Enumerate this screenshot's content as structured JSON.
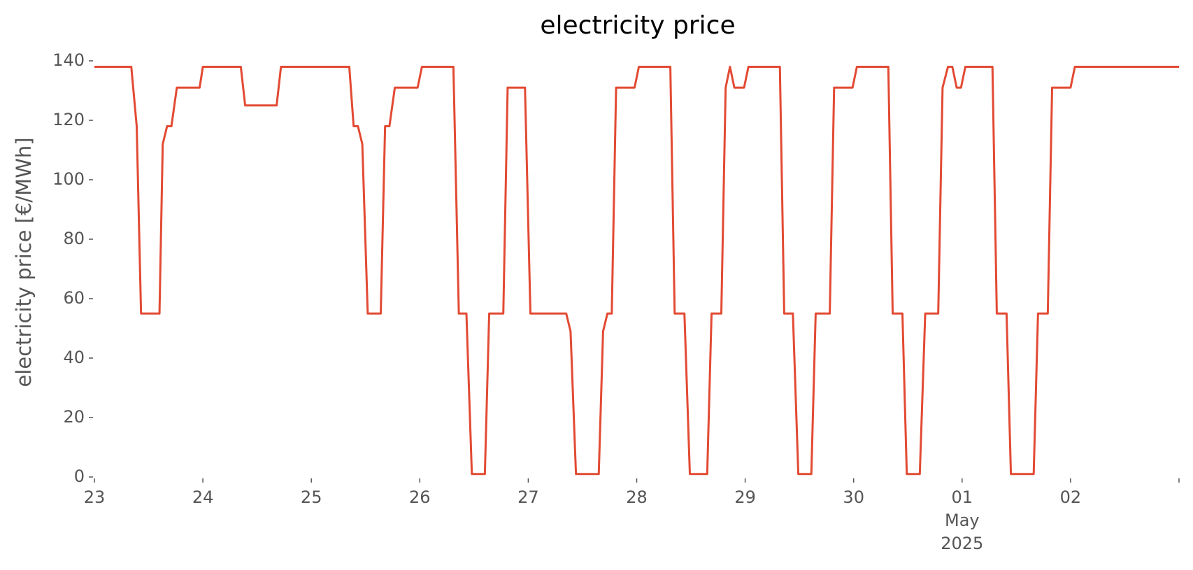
{
  "chart_data": {
    "type": "line",
    "title": "electricity price",
    "ylabel": "electricity price [€/MWh]",
    "x": [
      0,
      0.34,
      0.39,
      0.43,
      0.6,
      0.63,
      0.67,
      0.71,
      0.76,
      0.97,
      1.0,
      1.35,
      1.39,
      1.68,
      1.72,
      2.35,
      2.39,
      2.43,
      2.47,
      2.52,
      2.64,
      2.68,
      2.72,
      2.77,
      2.98,
      3.02,
      3.31,
      3.36,
      3.43,
      3.48,
      3.6,
      3.64,
      3.77,
      3.81,
      3.97,
      4.02,
      4.35,
      4.39,
      4.44,
      4.65,
      4.69,
      4.73,
      4.77,
      4.81,
      4.98,
      5.02,
      5.31,
      5.35,
      5.44,
      5.49,
      5.65,
      5.69,
      5.78,
      5.82,
      5.86,
      5.9,
      5.99,
      6.03,
      6.32,
      6.36,
      6.44,
      6.49,
      6.61,
      6.65,
      6.78,
      6.82,
      6.99,
      7.03,
      7.32,
      7.36,
      7.45,
      7.49,
      7.61,
      7.66,
      7.78,
      7.82,
      7.87,
      7.91,
      7.95,
      7.99,
      8.03,
      8.28,
      8.32,
      8.41,
      8.45,
      8.66,
      8.7,
      8.79,
      8.83,
      9.0,
      9.04,
      10
    ],
    "values": [
      138,
      138,
      118,
      55,
      55,
      112,
      118,
      118,
      131,
      131,
      138,
      138,
      125,
      125,
      138,
      138,
      118,
      118,
      112,
      55,
      55,
      118,
      118,
      131,
      131,
      138,
      138,
      55,
      55,
      1,
      1,
      55,
      55,
      131,
      131,
      55,
      55,
      49,
      1,
      1,
      49,
      55,
      55,
      131,
      131,
      138,
      138,
      55,
      55,
      1,
      1,
      55,
      55,
      131,
      138,
      131,
      131,
      138,
      138,
      55,
      55,
      1,
      1,
      55,
      55,
      131,
      131,
      138,
      138,
      55,
      55,
      1,
      1,
      55,
      55,
      131,
      138,
      138,
      131,
      131,
      138,
      138,
      55,
      55,
      1,
      1,
      55,
      55,
      131,
      131,
      138,
      138
    ],
    "color": "#e24a33",
    "xlim": [
      0,
      10
    ],
    "xticks": [
      {
        "value": 0,
        "label": "23"
      },
      {
        "value": 1,
        "label": "24"
      },
      {
        "value": 2,
        "label": "25"
      },
      {
        "value": 3,
        "label": "26"
      },
      {
        "value": 4,
        "label": "27"
      },
      {
        "value": 5,
        "label": "28"
      },
      {
        "value": 6,
        "label": "29"
      },
      {
        "value": 7,
        "label": "30"
      },
      {
        "value": 8,
        "label": "01"
      },
      {
        "value": 9,
        "label": "02"
      }
    ],
    "x_month_label": "May",
    "x_year_label": "2025",
    "ylim": [
      0,
      140
    ],
    "yticks": [
      0,
      20,
      40,
      60,
      80,
      100,
      120,
      140
    ],
    "grid": false
  }
}
